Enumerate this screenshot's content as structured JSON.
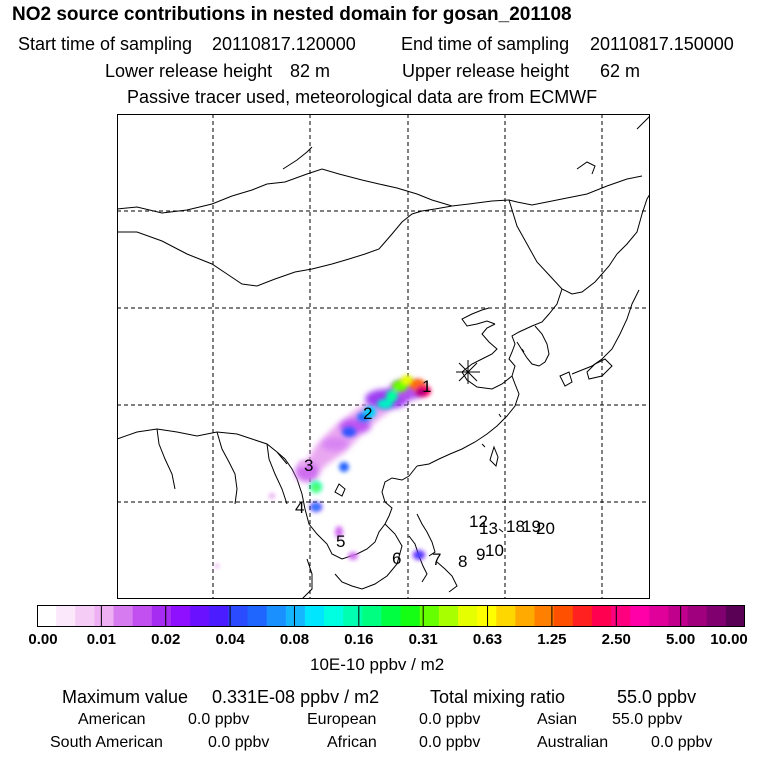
{
  "header": {
    "title": "NO2 source contributions in nested domain for gosan_201108",
    "start_label": "Start time of sampling",
    "start_value": "20110817.120000",
    "end_label": "End time of sampling",
    "end_value": "20110817.150000",
    "lower_label": "Lower release height",
    "lower_value": "82 m",
    "upper_label": "Upper release height",
    "upper_value": "62 m",
    "note": "Passive tracer used, meteorological data are from ECMWF"
  },
  "map": {
    "receptor_icon": "asterisk-icon",
    "source_labels": [
      "1",
      "2",
      "3",
      "4",
      "5",
      "6",
      "7",
      "8",
      "9",
      "10",
      "18",
      "19",
      "20",
      "12",
      "13"
    ]
  },
  "colorbar": {
    "tick_labels": [
      "0.00",
      "0.01",
      "0.02",
      "0.04",
      "0.08",
      "0.16",
      "0.31",
      "0.63",
      "1.25",
      "2.50",
      "5.00",
      "10.00"
    ],
    "unit": "10E-10 ppbv / m2",
    "colors": [
      "#ffffff",
      "#fbe8fb",
      "#f4ccf6",
      "#eeb0f3",
      "#d67cf0",
      "#c24ff0",
      "#a52cf0",
      "#8f10ff",
      "#6a12ff",
      "#4a1cff",
      "#2b4bff",
      "#1f66ff",
      "#1a90ff",
      "#16b6ff",
      "#00e6ff",
      "#00ffe0",
      "#00ffb0",
      "#00ff80",
      "#00ff40",
      "#14ff14",
      "#66ff00",
      "#a8ff00",
      "#e6ff00",
      "#ffff00",
      "#ffd700",
      "#ffaa00",
      "#ff8000",
      "#ff5000",
      "#ff2020",
      "#ff0050",
      "#ff007f",
      "#ff00a8",
      "#e0009a",
      "#c0008c",
      "#a0007e",
      "#800070",
      "#5a0055"
    ]
  },
  "stats": {
    "max_label": "Maximum value",
    "max_value": "0.331E-08 ppbv / m2",
    "total_label": "Total mixing ratio",
    "total_value": "55.0 ppbv",
    "american_label": "American",
    "american_value": "0.0 ppbv",
    "european_label": "European",
    "european_value": "0.0 ppbv",
    "asian_label": "Asian",
    "asian_value": "55.0 ppbv",
    "south_american_label": "South American",
    "south_american_value": "0.0 ppbv",
    "african_label": "African",
    "african_value": "0.0 ppbv",
    "australian_label": "Australian",
    "australian_value": "0.0 ppbv"
  }
}
